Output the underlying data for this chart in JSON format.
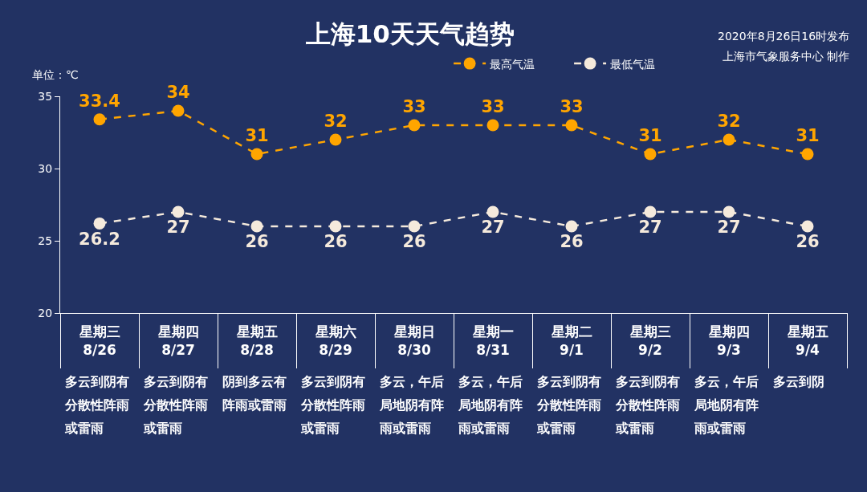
{
  "chart_data": {
    "type": "line",
    "title": "上海10天天气趋势",
    "ylabel": "单位：℃",
    "categories": [
      "星期三\n8/26",
      "星期四\n8/27",
      "星期五\n8/28",
      "星期六\n8/29",
      "星期日\n8/30",
      "星期一\n8/31",
      "星期二\n9/1",
      "星期三\n9/2",
      "星期四\n9/3",
      "星期五\n9/4"
    ],
    "series": [
      {
        "name": "最高气温",
        "color": "#ffa500",
        "values": [
          33.4,
          34,
          31,
          32,
          33,
          33,
          33,
          31,
          32,
          31
        ]
      },
      {
        "name": "最低气温",
        "color": "#f5eadc",
        "values": [
          26.2,
          27,
          26,
          26,
          26,
          27,
          26,
          27,
          27,
          26
        ]
      }
    ],
    "ylim": [
      20,
      35
    ],
    "yticks": [
      20,
      25,
      30,
      35
    ],
    "grid": false,
    "legend": "top",
    "marker": "circle",
    "line_style": "dashed",
    "data_labels": true,
    "annotations": [
      "2020年8月26日16时发布",
      "上海市气象服务中心 制作",
      "多云到阴有分散性阵雨或雷雨",
      "多云到阴有分散性阵雨或雷雨",
      "阴到多云有阵雨或雷雨",
      "多云到阴有分散性阵雨或雷雨",
      "多云，午后局地阴有阵雨或雷雨",
      "多云，午后局地阴有阵雨或雷雨",
      "多云到阴有分散性阵雨或雷雨",
      "多云到阴有分散性阵雨或雷雨",
      "多云，午后局地阴有阵雨或雷雨",
      "多云到阴"
    ]
  }
}
